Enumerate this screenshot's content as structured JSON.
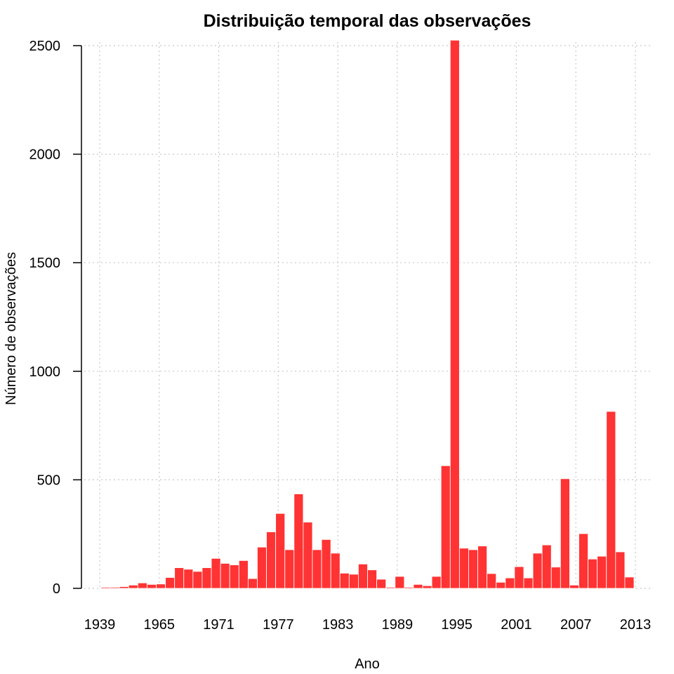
{
  "chart_data": {
    "type": "bar",
    "title": "Distribuição temporal das observações",
    "xlabel": "Ano",
    "ylabel": "Número de observações",
    "ylim": [
      0,
      2500
    ],
    "yticks": [
      0,
      500,
      1000,
      1500,
      2000,
      2500
    ],
    "x_tick_labels": [
      "1939",
      "1965",
      "1971",
      "1977",
      "1983",
      "1989",
      "1995",
      "2001",
      "2007",
      "2013"
    ],
    "grid": true,
    "colors": {
      "bar": "#ff3333",
      "bar_edge": "#ffffff",
      "grid": "#c8c8c8"
    },
    "values": [
      5,
      5,
      8,
      15,
      25,
      18,
      20,
      50,
      95,
      88,
      78,
      95,
      138,
      115,
      108,
      128,
      45,
      190,
      260,
      345,
      178,
      435,
      305,
      178,
      225,
      162,
      70,
      65,
      112,
      85,
      42,
      5,
      55,
      5,
      18,
      12,
      55,
      565,
      2525,
      185,
      178,
      195,
      68,
      28,
      48,
      100,
      48,
      162,
      200,
      98,
      505,
      15,
      252,
      135,
      148,
      815,
      168,
      52
    ]
  }
}
